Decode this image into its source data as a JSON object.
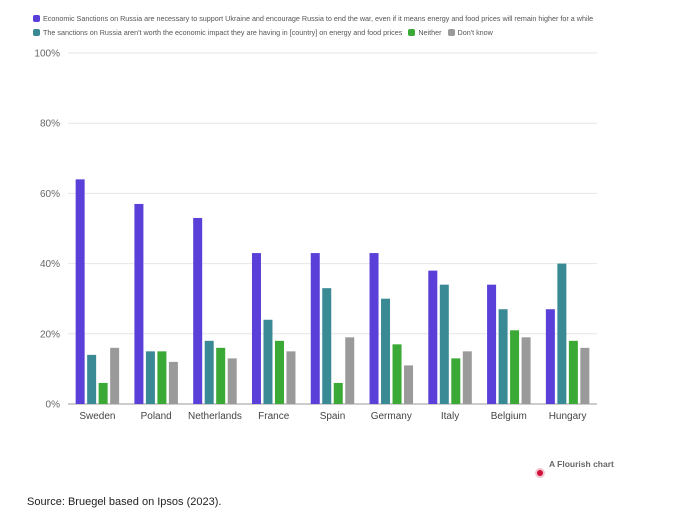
{
  "colors": {
    "series": [
      "#5b3fd9",
      "#3a8a96",
      "#3aa935",
      "#9a9a9a"
    ],
    "grid": "#e6e6e6",
    "axis": "#999999"
  },
  "chart_data": {
    "type": "bar",
    "categories": [
      "Sweden",
      "Poland",
      "Netherlands",
      "France",
      "Spain",
      "Germany",
      "Italy",
      "Belgium",
      "Hungary"
    ],
    "series": [
      {
        "name": "Economic Sanctions on Russia are necessary to support Ukraine and encourage Russia to end the war, even if it means energy and food prices will remain higher for a while",
        "values": [
          64,
          57,
          53,
          43,
          43,
          43,
          38,
          34,
          27
        ]
      },
      {
        "name": "The sanctions on Russia aren't worth the economic impact they are having in [country] on energy and food prices",
        "values": [
          14,
          15,
          18,
          24,
          33,
          30,
          34,
          27,
          40
        ]
      },
      {
        "name": "Neither",
        "values": [
          6,
          15,
          16,
          18,
          6,
          17,
          13,
          21,
          18
        ]
      },
      {
        "name": "Don't know",
        "values": [
          16,
          12,
          13,
          15,
          19,
          11,
          15,
          19,
          16
        ]
      }
    ],
    "yticks": [
      "0%",
      "20%",
      "40%",
      "60%",
      "80%",
      "100%"
    ],
    "ylim": [
      0,
      100
    ],
    "grid": true,
    "legend": "top"
  },
  "footer": {
    "credit": "A Flourish chart",
    "source": "Source: Bruegel based on Ipsos (2023)."
  }
}
